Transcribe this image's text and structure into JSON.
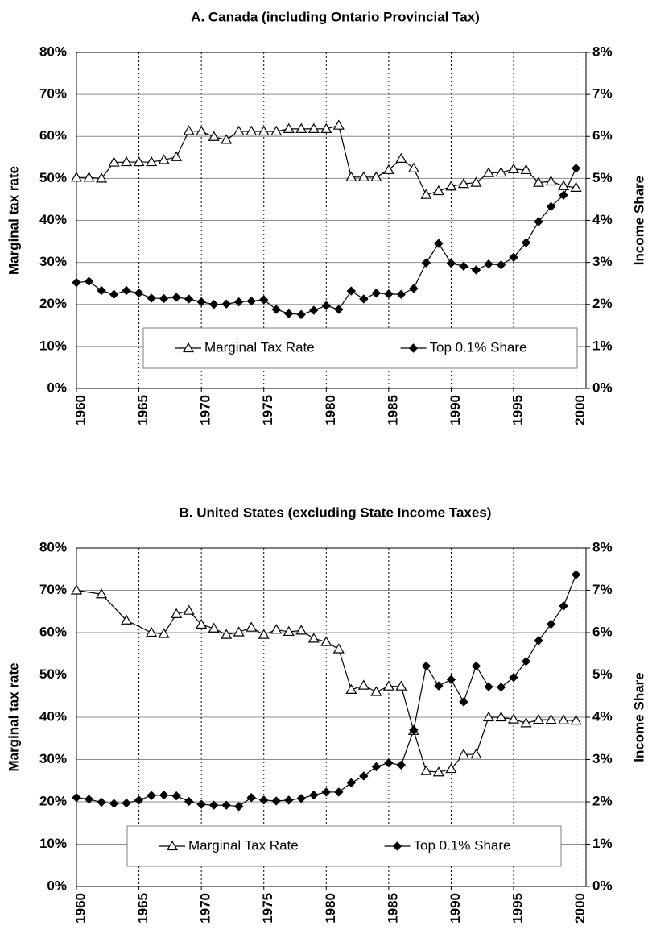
{
  "chart_data": [
    {
      "type": "line",
      "title": "A. Canada (including Ontario Provincial Tax)",
      "ylabel": "Marginal tax rate",
      "y2label": "Income Share",
      "xlim": [
        1960,
        2000.8
      ],
      "xticks": [
        1960,
        1965,
        1970,
        1975,
        1980,
        1985,
        1990,
        1995,
        2000
      ],
      "ylim": [
        0,
        80
      ],
      "yticks": [
        {
          "value": 0,
          "label": "0%"
        },
        {
          "value": 10,
          "label": "10%"
        },
        {
          "value": 20,
          "label": "20%"
        },
        {
          "value": 30,
          "label": "30%"
        },
        {
          "value": 40,
          "label": "40%"
        },
        {
          "value": 50,
          "label": "50%"
        },
        {
          "value": 60,
          "label": "60%"
        },
        {
          "value": 70,
          "label": "70%"
        },
        {
          "value": 80,
          "label": "80%"
        }
      ],
      "y2lim": [
        0,
        8
      ],
      "y2ticks": [
        {
          "value": 0,
          "label": "0%"
        },
        {
          "value": 1,
          "label": "1%"
        },
        {
          "value": 2,
          "label": "2%"
        },
        {
          "value": 3,
          "label": "3%"
        },
        {
          "value": 4,
          "label": "4%"
        },
        {
          "value": 5,
          "label": "5%"
        },
        {
          "value": 6,
          "label": "6%"
        },
        {
          "value": 7,
          "label": "7%"
        },
        {
          "value": 8,
          "label": "8%"
        }
      ],
      "grid": true,
      "legend": "lower center",
      "series": [
        {
          "name": "Marginal Tax Rate",
          "color": "#000000",
          "marker": "triangle",
          "axis": "y",
          "x": [
            1960,
            1961,
            1962,
            1963,
            1964,
            1965,
            1966,
            1967,
            1968,
            1969,
            1970,
            1971,
            1972,
            1973,
            1974,
            1975,
            1976,
            1977,
            1978,
            1979,
            1980,
            1981,
            1982,
            1983,
            1984,
            1985,
            1986,
            1987,
            1988,
            1989,
            1990,
            1991,
            1992,
            1993,
            1994,
            1995,
            1996,
            1997,
            1998,
            1999,
            2000
          ],
          "values": [
            50.2,
            50.2,
            50.0,
            53.8,
            53.9,
            53.9,
            53.9,
            54.4,
            55.1,
            61.3,
            61.2,
            59.9,
            59.2,
            61.2,
            61.2,
            61.2,
            61.2,
            61.8,
            61.8,
            61.8,
            61.8,
            62.6,
            50.3,
            50.3,
            50.3,
            52.0,
            54.7,
            52.4,
            46.1,
            47.0,
            48.1,
            48.7,
            49.0,
            51.3,
            51.4,
            52.2,
            52.0,
            49.0,
            49.3,
            48.2,
            47.8
          ]
        },
        {
          "name": "Top 0.1% Share",
          "color": "#000000",
          "marker": "diamond",
          "axis": "y2",
          "x": [
            1960,
            1961,
            1962,
            1963,
            1964,
            1965,
            1966,
            1967,
            1968,
            1969,
            1970,
            1971,
            1972,
            1973,
            1974,
            1975,
            1976,
            1977,
            1978,
            1979,
            1980,
            1981,
            1982,
            1983,
            1984,
            1985,
            1986,
            1987,
            1988,
            1989,
            1990,
            1991,
            1992,
            1993,
            1994,
            1995,
            1996,
            1997,
            1998,
            1999,
            2000
          ],
          "values": [
            2.52,
            2.55,
            2.33,
            2.24,
            2.33,
            2.27,
            2.15,
            2.14,
            2.17,
            2.13,
            2.06,
            2.0,
            2.01,
            2.06,
            2.08,
            2.11,
            1.88,
            1.78,
            1.76,
            1.86,
            1.97,
            1.88,
            2.32,
            2.13,
            2.27,
            2.25,
            2.24,
            2.38,
            2.99,
            3.45,
            2.98,
            2.91,
            2.82,
            2.96,
            2.94,
            3.12,
            3.47,
            3.97,
            4.33,
            4.6,
            5.24
          ]
        }
      ]
    },
    {
      "type": "line",
      "title": "B. United States (excluding State Income Taxes)",
      "ylabel": "Marginal tax rate",
      "y2label": "Income Share",
      "xlim": [
        1960,
        2000.8
      ],
      "xticks": [
        1960,
        1965,
        1970,
        1975,
        1980,
        1985,
        1990,
        1995,
        2000
      ],
      "ylim": [
        0,
        80
      ],
      "yticks": [
        {
          "value": 0,
          "label": "0%"
        },
        {
          "value": 10,
          "label": "10%"
        },
        {
          "value": 20,
          "label": "20%"
        },
        {
          "value": 30,
          "label": "30%"
        },
        {
          "value": 40,
          "label": "40%"
        },
        {
          "value": 50,
          "label": "50%"
        },
        {
          "value": 60,
          "label": "60%"
        },
        {
          "value": 70,
          "label": "70%"
        },
        {
          "value": 80,
          "label": "80%"
        }
      ],
      "y2lim": [
        0,
        8
      ],
      "y2ticks": [
        {
          "value": 0,
          "label": "0%"
        },
        {
          "value": 1,
          "label": "1%"
        },
        {
          "value": 2,
          "label": "2%"
        },
        {
          "value": 3,
          "label": "3%"
        },
        {
          "value": 4,
          "label": "4%"
        },
        {
          "value": 5,
          "label": "5%"
        },
        {
          "value": 6,
          "label": "6%"
        },
        {
          "value": 7,
          "label": "7%"
        },
        {
          "value": 8,
          "label": "8%"
        }
      ],
      "grid": true,
      "legend": "lower center",
      "series": [
        {
          "name": "Marginal Tax Rate",
          "color": "#000000",
          "marker": "triangle",
          "axis": "y",
          "x": [
            1960,
            1962,
            1964,
            1966,
            1967,
            1968,
            1969,
            1970,
            1971,
            1972,
            1973,
            1974,
            1975,
            1976,
            1977,
            1978,
            1979,
            1980,
            1981,
            1982,
            1983,
            1984,
            1985,
            1986,
            1987,
            1988,
            1989,
            1990,
            1991,
            1992,
            1993,
            1994,
            1995,
            1996,
            1997,
            1998,
            1999,
            2000
          ],
          "values": [
            70.0,
            69.1,
            62.9,
            60.0,
            59.7,
            64.4,
            65.2,
            61.9,
            61.0,
            59.5,
            60.1,
            61.2,
            59.5,
            60.7,
            60.2,
            60.5,
            58.6,
            57.8,
            56.1,
            46.5,
            47.5,
            46.0,
            47.3,
            47.3,
            36.8,
            27.3,
            27.0,
            27.8,
            31.2,
            31.2,
            40.0,
            40.0,
            39.5,
            38.6,
            39.4,
            39.4,
            39.3,
            39.2
          ]
        },
        {
          "name": "Top 0.1% Share",
          "color": "#000000",
          "marker": "diamond",
          "axis": "y2",
          "x": [
            1960,
            1961,
            1962,
            1963,
            1964,
            1965,
            1966,
            1967,
            1968,
            1969,
            1970,
            1971,
            1972,
            1973,
            1974,
            1975,
            1976,
            1977,
            1978,
            1979,
            1980,
            1981,
            1982,
            1983,
            1984,
            1985,
            1986,
            1987,
            1988,
            1989,
            1990,
            1991,
            1992,
            1993,
            1994,
            1995,
            1996,
            1997,
            1998,
            1999,
            2000
          ],
          "values": [
            2.1,
            2.06,
            1.99,
            1.96,
            1.97,
            2.04,
            2.15,
            2.16,
            2.14,
            2.01,
            1.94,
            1.92,
            1.92,
            1.89,
            2.1,
            2.04,
            2.02,
            2.04,
            2.08,
            2.16,
            2.23,
            2.23,
            2.45,
            2.61,
            2.83,
            2.92,
            2.87,
            3.7,
            5.21,
            4.74,
            4.89,
            4.36,
            5.21,
            4.72,
            4.71,
            4.94,
            5.32,
            5.81,
            6.2,
            6.63,
            7.37
          ]
        }
      ]
    }
  ]
}
